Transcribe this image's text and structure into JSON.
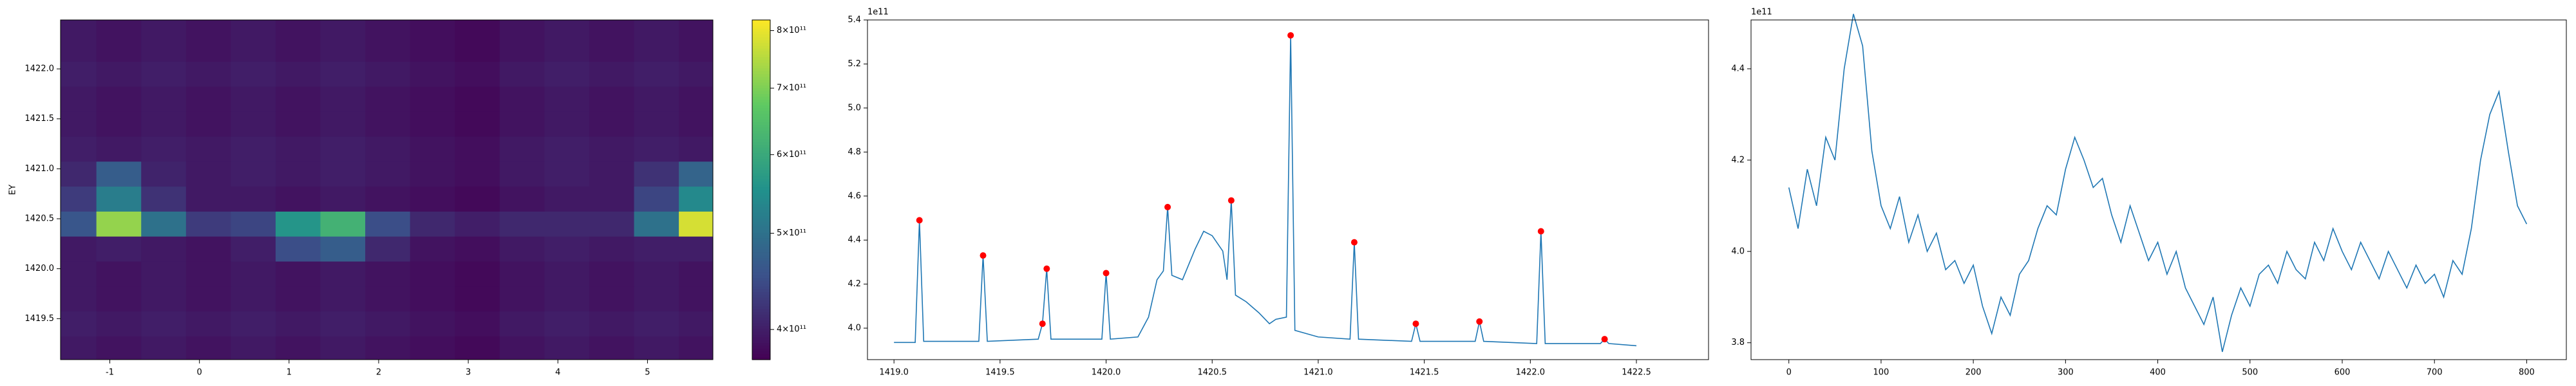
{
  "chart_data": [
    {
      "type": "heatmap",
      "ylabel": "EY",
      "x": [
        -1.4,
        -0.9,
        -0.4,
        0.1,
        0.6,
        1.1,
        1.6,
        2.1,
        2.6,
        3.1,
        3.6,
        4.1,
        4.6,
        5.1,
        5.6
      ],
      "y": [
        1419.2,
        1419.45,
        1419.7,
        1419.95,
        1420.2,
        1420.45,
        1420.7,
        1420.95,
        1421.2,
        1421.45,
        1421.7,
        1421.95,
        1422.2,
        1422.45
      ],
      "z": [
        [
          395000000000.0,
          390000000000.0,
          395000000000.0,
          390000000000.0,
          395000000000.0,
          390000000000.0,
          395000000000.0,
          390000000000.0,
          385000000000.0,
          380000000000.0,
          390000000000.0,
          395000000000.0,
          390000000000.0,
          395000000000.0,
          390000000000.0
        ],
        [
          400000000000.0,
          395000000000.0,
          400000000000.0,
          395000000000.0,
          400000000000.0,
          395000000000.0,
          400000000000.0,
          395000000000.0,
          390000000000.0,
          385000000000.0,
          395000000000.0,
          400000000000.0,
          395000000000.0,
          400000000000.0,
          395000000000.0
        ],
        [
          395000000000.0,
          390000000000.0,
          395000000000.0,
          390000000000.0,
          395000000000.0,
          390000000000.0,
          395000000000.0,
          390000000000.0,
          385000000000.0,
          380000000000.0,
          390000000000.0,
          395000000000.0,
          390000000000.0,
          395000000000.0,
          390000000000.0
        ],
        [
          395000000000.0,
          390000000000.0,
          395000000000.0,
          390000000000.0,
          395000000000.0,
          390000000000.0,
          395000000000.0,
          390000000000.0,
          385000000000.0,
          380000000000.0,
          390000000000.0,
          395000000000.0,
          390000000000.0,
          395000000000.0,
          390000000000.0
        ],
        [
          395000000000.0,
          400000000000.0,
          395000000000.0,
          390000000000.0,
          400000000000.0,
          450000000000.0,
          470000000000.0,
          410000000000.0,
          390000000000.0,
          385000000000.0,
          395000000000.0,
          400000000000.0,
          395000000000.0,
          400000000000.0,
          400000000000.0
        ],
        [
          460000000000.0,
          720000000000.0,
          500000000000.0,
          430000000000.0,
          440000000000.0,
          560000000000.0,
          620000000000.0,
          450000000000.0,
          410000000000.0,
          400000000000.0,
          410000000000.0,
          410000000000.0,
          410000000000.0,
          500000000000.0,
          780000000000.0
        ],
        [
          430000000000.0,
          520000000000.0,
          420000000000.0,
          395000000000.0,
          395000000000.0,
          390000000000.0,
          395000000000.0,
          390000000000.0,
          385000000000.0,
          380000000000.0,
          390000000000.0,
          395000000000.0,
          395000000000.0,
          440000000000.0,
          540000000000.0
        ],
        [
          410000000000.0,
          470000000000.0,
          405000000000.0,
          395000000000.0,
          400000000000.0,
          395000000000.0,
          400000000000.0,
          395000000000.0,
          390000000000.0,
          385000000000.0,
          395000000000.0,
          400000000000.0,
          395000000000.0,
          420000000000.0,
          480000000000.0
        ],
        [
          400000000000.0,
          395000000000.0,
          400000000000.0,
          395000000000.0,
          400000000000.0,
          395000000000.0,
          400000000000.0,
          395000000000.0,
          390000000000.0,
          385000000000.0,
          395000000000.0,
          400000000000.0,
          395000000000.0,
          400000000000.0,
          395000000000.0
        ],
        [
          395000000000.0,
          390000000000.0,
          395000000000.0,
          390000000000.0,
          395000000000.0,
          390000000000.0,
          395000000000.0,
          390000000000.0,
          385000000000.0,
          380000000000.0,
          390000000000.0,
          395000000000.0,
          390000000000.0,
          395000000000.0,
          390000000000.0
        ],
        [
          395000000000.0,
          390000000000.0,
          395000000000.0,
          390000000000.0,
          395000000000.0,
          390000000000.0,
          395000000000.0,
          390000000000.0,
          385000000000.0,
          380000000000.0,
          390000000000.0,
          395000000000.0,
          390000000000.0,
          395000000000.0,
          390000000000.0
        ],
        [
          400000000000.0,
          395000000000.0,
          400000000000.0,
          395000000000.0,
          400000000000.0,
          395000000000.0,
          400000000000.0,
          395000000000.0,
          390000000000.0,
          385000000000.0,
          395000000000.0,
          400000000000.0,
          395000000000.0,
          400000000000.0,
          395000000000.0
        ],
        [
          395000000000.0,
          390000000000.0,
          395000000000.0,
          390000000000.0,
          395000000000.0,
          390000000000.0,
          395000000000.0,
          390000000000.0,
          385000000000.0,
          380000000000.0,
          390000000000.0,
          395000000000.0,
          390000000000.0,
          395000000000.0,
          390000000000.0
        ],
        [
          395000000000.0,
          390000000000.0,
          395000000000.0,
          390000000000.0,
          395000000000.0,
          390000000000.0,
          395000000000.0,
          390000000000.0,
          385000000000.0,
          380000000000.0,
          390000000000.0,
          395000000000.0,
          390000000000.0,
          395000000000.0,
          390000000000.0
        ]
      ],
      "xlim": [
        -1.55,
        5.73
      ],
      "ylim": [
        1419.09,
        1422.49
      ],
      "xticks": [
        -1,
        0,
        1,
        2,
        3,
        4,
        5
      ],
      "yticks": [
        {
          "value": 1419.5,
          "label": "1419.5"
        },
        {
          "value": 1420,
          "label": "1420.0"
        },
        {
          "value": 1420.5,
          "label": "1420.5"
        },
        {
          "value": 1421,
          "label": "1421.0"
        },
        {
          "value": 1421.5,
          "label": "1421.5"
        },
        {
          "value": 1422,
          "label": "1422.0"
        }
      ],
      "colormap": "viridis",
      "color_scale": "log",
      "clim": [
        373000000000.0,
        820000000000.0
      ],
      "cticks": [
        {
          "value": 400000000000.0,
          "label": "4×10¹¹"
        },
        {
          "value": 500000000000.0,
          "label": "5×10¹¹"
        },
        {
          "value": 600000000000.0,
          "label": "6×10¹¹"
        },
        {
          "value": 700000000000.0,
          "label": "7×10¹¹"
        },
        {
          "value": 800000000000.0,
          "label": "8×10¹¹"
        }
      ]
    },
    {
      "type": "line",
      "offset_label": "1e11",
      "series": [
        {
          "color": "#1f77b4",
          "mode": "line",
          "x": [
            1419.0,
            1419.1,
            1419.12,
            1419.14,
            1419.4,
            1419.42,
            1419.44,
            1419.68,
            1419.7,
            1419.72,
            1419.74,
            1419.98,
            1420.0,
            1420.02,
            1420.15,
            1420.2,
            1420.24,
            1420.27,
            1420.29,
            1420.31,
            1420.36,
            1420.42,
            1420.46,
            1420.5,
            1420.55,
            1420.57,
            1420.59,
            1420.61,
            1420.66,
            1420.72,
            1420.77,
            1420.8,
            1420.85,
            1420.87,
            1420.89,
            1421.0,
            1421.15,
            1421.17,
            1421.19,
            1421.44,
            1421.46,
            1421.48,
            1421.74,
            1421.76,
            1421.78,
            1422.03,
            1422.05,
            1422.07,
            1422.33,
            1422.35,
            1422.37,
            1422.5
          ],
          "values": [
            3.935,
            3.935,
            4.49,
            3.94,
            3.94,
            4.33,
            3.94,
            3.95,
            4.02,
            4.27,
            3.95,
            3.95,
            4.25,
            3.95,
            3.96,
            4.05,
            4.22,
            4.26,
            4.55,
            4.24,
            4.22,
            4.36,
            4.44,
            4.42,
            4.35,
            4.22,
            4.58,
            4.15,
            4.12,
            4.07,
            4.02,
            4.04,
            4.05,
            5.33,
            3.99,
            3.96,
            3.95,
            4.39,
            3.95,
            3.94,
            4.02,
            3.94,
            3.94,
            4.03,
            3.94,
            3.93,
            4.44,
            3.93,
            3.93,
            3.95,
            3.93,
            3.92
          ]
        },
        {
          "color": "#ff0000",
          "mode": "markers",
          "x": [
            1419.12,
            1419.42,
            1419.7,
            1419.72,
            1420.0,
            1420.29,
            1420.59,
            1420.87,
            1421.17,
            1421.46,
            1421.76,
            1422.05,
            1422.35
          ],
          "values": [
            4.49,
            4.33,
            4.02,
            4.27,
            4.25,
            4.55,
            4.58,
            5.33,
            4.39,
            4.02,
            4.03,
            4.44,
            3.95
          ]
        }
      ],
      "xlim": [
        1418.875,
        1422.84
      ],
      "ylim": [
        3.857,
        5.4
      ],
      "xticks": [
        {
          "value": 1419,
          "label": "1419.0"
        },
        1419.5,
        {
          "value": 1420,
          "label": "1420.0"
        },
        1420.5,
        {
          "value": 1421,
          "label": "1421.0"
        },
        1421.5,
        {
          "value": 1422,
          "label": "1422.0"
        },
        1422.5
      ],
      "yticks": [
        {
          "value": 4,
          "label": "4.0"
        },
        4.2,
        4.4,
        4.6,
        4.8,
        {
          "value": 5,
          "label": "5.0"
        },
        5.2,
        5.4
      ]
    },
    {
      "type": "line",
      "offset_label": "1e11",
      "series": [
        {
          "color": "#1f77b4",
          "mode": "line",
          "x": [
            0,
            10,
            20,
            30,
            40,
            50,
            60,
            70,
            80,
            90,
            100,
            110,
            120,
            130,
            140,
            150,
            160,
            170,
            180,
            190,
            200,
            210,
            220,
            230,
            240,
            250,
            260,
            270,
            280,
            290,
            300,
            310,
            320,
            330,
            340,
            350,
            360,
            370,
            380,
            390,
            400,
            410,
            420,
            430,
            440,
            450,
            460,
            470,
            480,
            490,
            500,
            510,
            520,
            530,
            540,
            550,
            560,
            570,
            580,
            590,
            600,
            610,
            620,
            630,
            640,
            650,
            660,
            670,
            680,
            690,
            700,
            710,
            720,
            730,
            740,
            750,
            760,
            770,
            780,
            790,
            800
          ],
          "values": [
            4.14,
            4.05,
            4.18,
            4.1,
            4.25,
            4.2,
            4.4,
            4.52,
            4.45,
            4.22,
            4.1,
            4.05,
            4.12,
            4.02,
            4.08,
            4.0,
            4.04,
            3.96,
            3.98,
            3.93,
            3.97,
            3.88,
            3.82,
            3.9,
            3.86,
            3.95,
            3.98,
            4.05,
            4.1,
            4.08,
            4.18,
            4.25,
            4.2,
            4.14,
            4.16,
            4.08,
            4.02,
            4.1,
            4.04,
            3.98,
            4.02,
            3.95,
            4.0,
            3.92,
            3.88,
            3.84,
            3.9,
            3.78,
            3.86,
            3.92,
            3.88,
            3.95,
            3.97,
            3.93,
            4.0,
            3.96,
            3.94,
            4.02,
            3.98,
            4.05,
            4.0,
            3.96,
            4.02,
            3.98,
            3.94,
            4.0,
            3.96,
            3.92,
            3.97,
            3.93,
            3.95,
            3.9,
            3.98,
            3.95,
            4.05,
            4.2,
            4.3,
            4.35,
            4.22,
            4.1,
            4.06
          ]
        }
      ],
      "xlim": [
        -41,
        843
      ],
      "ylim": [
        3.763,
        4.507
      ],
      "xticks": [
        0,
        100,
        200,
        300,
        400,
        500,
        600,
        700,
        800
      ],
      "yticks": [
        3.8,
        {
          "value": 4,
          "label": "4.0"
        },
        4.2,
        4.4
      ]
    }
  ]
}
